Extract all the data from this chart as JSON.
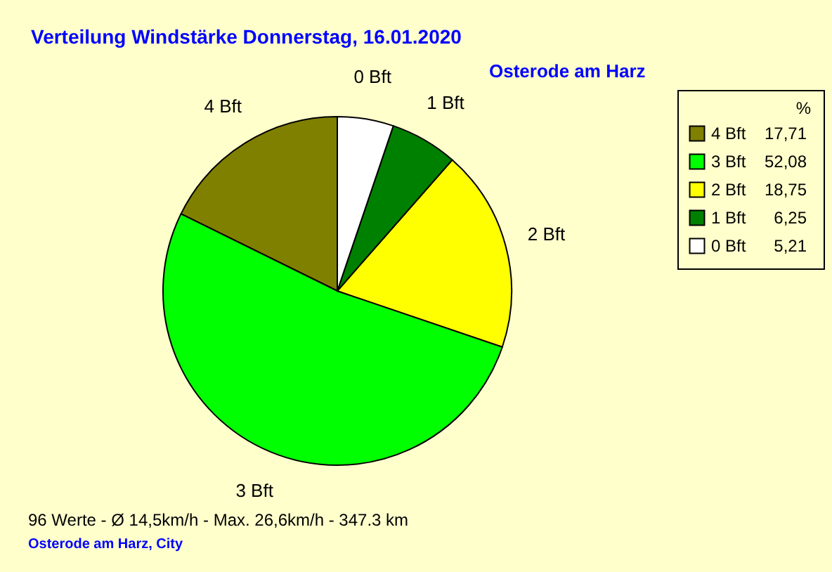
{
  "chart_data": {
    "type": "pie",
    "title": "Verteilung Windstärke  Donnerstag, 16.01.2020",
    "subtitle": "Osterode am Harz",
    "legend_title": "%",
    "categories": [
      "4 Bft",
      "3 Bft",
      "2 Bft",
      "1 Bft",
      "0 Bft"
    ],
    "values": [
      17.71,
      52.08,
      18.75,
      6.25,
      5.21
    ],
    "colors": [
      "#808000",
      "#00ff00",
      "#ffff00",
      "#008000",
      "#ffffff"
    ],
    "value_labels": [
      "17,71",
      "52,08",
      "18,75",
      "6,25",
      "5,21"
    ],
    "legend": "top right",
    "annotations": [
      "96 Werte  -  Ø 14,5km/h  -  Max. 26,6km/h  -  347.3 km",
      "Osterode am Harz, City"
    ]
  }
}
